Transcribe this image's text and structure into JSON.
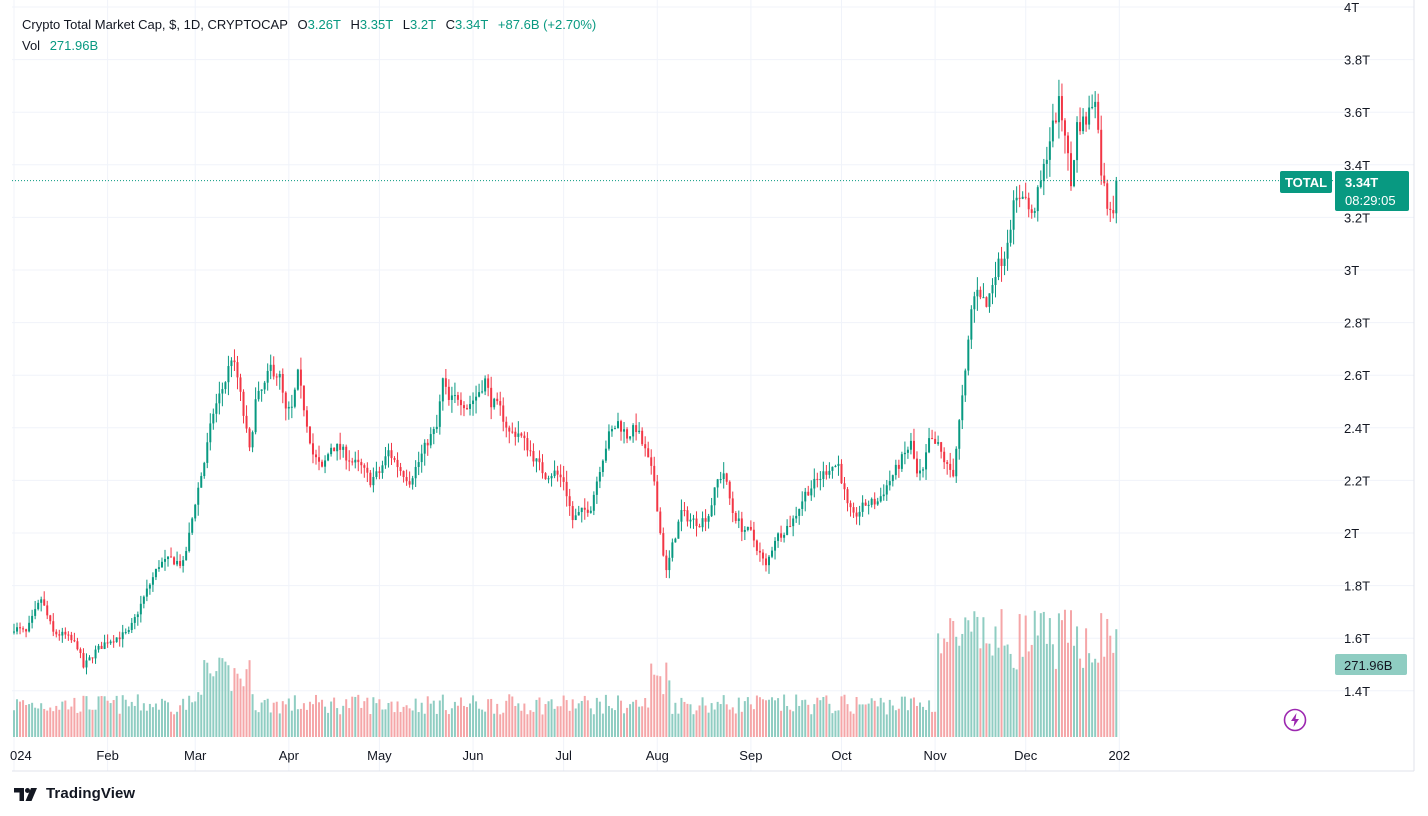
{
  "legend": {
    "symbol": "Crypto Total Market Cap, $, 1D, CRYPTOCAP",
    "o_label": "O",
    "o_value": "3.26T",
    "h_label": "H",
    "h_value": "3.35T",
    "l_label": "L",
    "l_value": "3.2T",
    "c_label": "C",
    "c_value": "3.34T",
    "change": "+87.6B (+2.70%)",
    "vol_label": "Vol",
    "vol_value": "271.96B"
  },
  "price_tag": {
    "name": "TOTAL",
    "price": "3.34T",
    "countdown": "08:29:05"
  },
  "volume_tag": "271.96B",
  "brand": {
    "name": "TradingView",
    "icon": "tradingview-logo"
  },
  "colors": {
    "up": "#089981",
    "down": "#f23645",
    "vol_up": "#8fcdc2",
    "vol_down": "#f5a6a8",
    "grid": "#f0f3fa",
    "tag": "#089981",
    "text": "#131722"
  },
  "chart_data": {
    "type": "candlestick",
    "y_ticks": [
      "4T",
      "3.8T",
      "3.6T",
      "3.4T",
      "3.2T",
      "3T",
      "2.8T",
      "2.6T",
      "2.4T",
      "2.2T",
      "2T",
      "1.8T",
      "1.6T",
      "1.4T"
    ],
    "y_tick_values": [
      4.0,
      3.8,
      3.6,
      3.4,
      3.2,
      3.0,
      2.8,
      2.6,
      2.4,
      2.2,
      2.0,
      1.8,
      1.6,
      1.4
    ],
    "ylim": [
      1.24,
      4.0
    ],
    "x_ticks": [
      "024",
      "Feb",
      "Mar",
      "Apr",
      "May",
      "Jun",
      "Jul",
      "Aug",
      "Sep",
      "Oct",
      "Nov",
      "Dec",
      "202"
    ],
    "x_tick_days": [
      0,
      31,
      60,
      91,
      121,
      152,
      182,
      213,
      244,
      274,
      305,
      335,
      366
    ],
    "last_close": 3.34,
    "anchors": [
      [
        0,
        1.64
      ],
      [
        4,
        1.62
      ],
      [
        9,
        1.75
      ],
      [
        13,
        1.62
      ],
      [
        17,
        1.61
      ],
      [
        21,
        1.57
      ],
      [
        23,
        1.49
      ],
      [
        27,
        1.55
      ],
      [
        31,
        1.59
      ],
      [
        38,
        1.62
      ],
      [
        44,
        1.78
      ],
      [
        48,
        1.88
      ],
      [
        52,
        1.9
      ],
      [
        56,
        1.88
      ],
      [
        58,
        1.99
      ],
      [
        60,
        2.12
      ],
      [
        63,
        2.27
      ],
      [
        66,
        2.46
      ],
      [
        70,
        2.58
      ],
      [
        72,
        2.67
      ],
      [
        74,
        2.59
      ],
      [
        76,
        2.45
      ],
      [
        78,
        2.31
      ],
      [
        80,
        2.5
      ],
      [
        83,
        2.56
      ],
      [
        85,
        2.63
      ],
      [
        88,
        2.59
      ],
      [
        90,
        2.46
      ],
      [
        92,
        2.47
      ],
      [
        94,
        2.6
      ],
      [
        96,
        2.48
      ],
      [
        99,
        2.3
      ],
      [
        102,
        2.24
      ],
      [
        105,
        2.33
      ],
      [
        108,
        2.32
      ],
      [
        112,
        2.27
      ],
      [
        115,
        2.25
      ],
      [
        118,
        2.2
      ],
      [
        121,
        2.23
      ],
      [
        124,
        2.31
      ],
      [
        128,
        2.24
      ],
      [
        131,
        2.2
      ],
      [
        134,
        2.27
      ],
      [
        137,
        2.35
      ],
      [
        140,
        2.4
      ],
      [
        142,
        2.58
      ],
      [
        144,
        2.5
      ],
      [
        147,
        2.52
      ],
      [
        150,
        2.48
      ],
      [
        153,
        2.52
      ],
      [
        156,
        2.58
      ],
      [
        158,
        2.5
      ],
      [
        161,
        2.47
      ],
      [
        164,
        2.38
      ],
      [
        167,
        2.38
      ],
      [
        170,
        2.33
      ],
      [
        173,
        2.27
      ],
      [
        176,
        2.22
      ],
      [
        179,
        2.23
      ],
      [
        182,
        2.2
      ],
      [
        185,
        2.05
      ],
      [
        188,
        2.08
      ],
      [
        191,
        2.1
      ],
      [
        194,
        2.25
      ],
      [
        197,
        2.37
      ],
      [
        200,
        2.42
      ],
      [
        203,
        2.37
      ],
      [
        206,
        2.4
      ],
      [
        209,
        2.31
      ],
      [
        212,
        2.2
      ],
      [
        214,
        2.0
      ],
      [
        216,
        1.85
      ],
      [
        218,
        1.95
      ],
      [
        221,
        2.08
      ],
      [
        224,
        2.05
      ],
      [
        227,
        2.04
      ],
      [
        230,
        2.07
      ],
      [
        233,
        2.2
      ],
      [
        235,
        2.23
      ],
      [
        238,
        2.08
      ],
      [
        241,
        2.02
      ],
      [
        244,
        2.0
      ],
      [
        247,
        1.92
      ],
      [
        249,
        1.87
      ],
      [
        252,
        1.98
      ],
      [
        255,
        2.01
      ],
      [
        258,
        2.05
      ],
      [
        262,
        2.15
      ],
      [
        266,
        2.2
      ],
      [
        270,
        2.25
      ],
      [
        273,
        2.26
      ],
      [
        276,
        2.1
      ],
      [
        278,
        2.06
      ],
      [
        282,
        2.11
      ],
      [
        286,
        2.12
      ],
      [
        290,
        2.2
      ],
      [
        294,
        2.28
      ],
      [
        297,
        2.34
      ],
      [
        299,
        2.22
      ],
      [
        301,
        2.23
      ],
      [
        303,
        2.35
      ],
      [
        306,
        2.33
      ],
      [
        309,
        2.25
      ],
      [
        311,
        2.23
      ],
      [
        313,
        2.42
      ],
      [
        315,
        2.6
      ],
      [
        317,
        2.85
      ],
      [
        319,
        2.94
      ],
      [
        322,
        2.86
      ],
      [
        325,
        3.0
      ],
      [
        328,
        3.06
      ],
      [
        331,
        3.24
      ],
      [
        334,
        3.3
      ],
      [
        337,
        3.2
      ],
      [
        340,
        3.33
      ],
      [
        343,
        3.5
      ],
      [
        346,
        3.63
      ],
      [
        348,
        3.53
      ],
      [
        350,
        3.32
      ],
      [
        352,
        3.55
      ],
      [
        355,
        3.57
      ],
      [
        358,
        3.67
      ],
      [
        360,
        3.38
      ],
      [
        362,
        3.25
      ],
      [
        364,
        3.24
      ],
      [
        365,
        3.34
      ]
    ],
    "volume_shape": "elevated after Nov; peaks near Mar, Aug, Nov-Dec",
    "note": "Daily candlestick chart of crypto total market cap across 2024 with volume bars"
  }
}
